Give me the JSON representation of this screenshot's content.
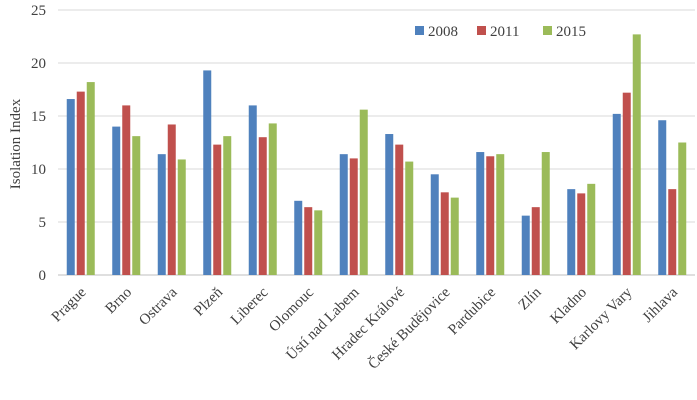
{
  "chart_data": {
    "type": "bar",
    "title": "",
    "xlabel": "",
    "ylabel": "Isolation Index",
    "ylim": [
      0,
      25
    ],
    "yticks": [
      0,
      5,
      10,
      15,
      20,
      25
    ],
    "grid": true,
    "legend_position": "top-right",
    "categories": [
      "Prague",
      "Brno",
      "Ostrava",
      "Plzeň",
      "Liberec",
      "Olomouc",
      "Ústí nad Labem",
      "Hradec Králové",
      "České Budějovice",
      "Pardubice",
      "Zlín",
      "Kladno",
      "Karlovy Vary",
      "Jihlava"
    ],
    "series": [
      {
        "name": "2008",
        "color": "#4f81bd",
        "values": [
          16.6,
          14.0,
          11.4,
          19.3,
          16.0,
          7.0,
          11.4,
          13.3,
          9.5,
          11.6,
          5.6,
          8.1,
          15.2,
          14.6
        ]
      },
      {
        "name": "2011",
        "color": "#c0504d",
        "values": [
          17.3,
          16.0,
          14.2,
          12.3,
          13.0,
          6.4,
          11.0,
          12.3,
          7.8,
          11.2,
          6.4,
          7.7,
          17.2,
          8.1
        ]
      },
      {
        "name": "2015",
        "color": "#9bbb59",
        "values": [
          18.2,
          13.1,
          10.9,
          13.1,
          14.3,
          6.1,
          15.6,
          10.7,
          7.3,
          11.4,
          11.6,
          8.6,
          22.7,
          12.5
        ]
      }
    ]
  }
}
